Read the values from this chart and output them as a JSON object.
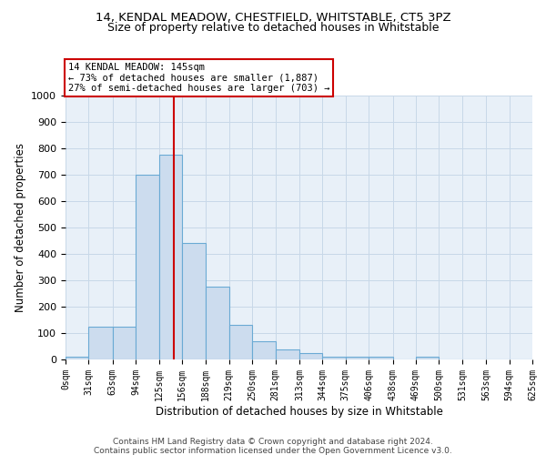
{
  "title1": "14, KENDAL MEADOW, CHESTFIELD, WHITSTABLE, CT5 3PZ",
  "title2": "Size of property relative to detached houses in Whitstable",
  "xlabel": "Distribution of detached houses by size in Whitstable",
  "ylabel": "Number of detached properties",
  "bin_edges": [
    0,
    31,
    63,
    94,
    125,
    156,
    188,
    219,
    250,
    281,
    313,
    344,
    375,
    406,
    438,
    469,
    500,
    531,
    563,
    594,
    625
  ],
  "bar_heights": [
    10,
    125,
    125,
    700,
    775,
    440,
    275,
    130,
    70,
    38,
    25,
    12,
    12,
    10,
    0,
    10,
    0,
    0,
    0,
    0
  ],
  "bar_facecolor": "#ccdcee",
  "bar_edgecolor": "#6aaad4",
  "bar_linewidth": 0.8,
  "vline_x": 145,
  "vline_color": "#cc0000",
  "vline_linewidth": 1.5,
  "annotation_lines": [
    "14 KENDAL MEADOW: 145sqm",
    "← 73% of detached houses are smaller (1,887)",
    "27% of semi-detached houses are larger (703) →"
  ],
  "annotation_box_color": "#cc0000",
  "annotation_text_color": "#000000",
  "annotation_bg": "#ffffff",
  "grid_color": "#c8d8e8",
  "background_color": "#e8f0f8",
  "ylim": [
    0,
    1000
  ],
  "yticks": [
    0,
    100,
    200,
    300,
    400,
    500,
    600,
    700,
    800,
    900,
    1000
  ],
  "tick_labels": [
    "0sqm",
    "31sqm",
    "63sqm",
    "94sqm",
    "125sqm",
    "156sqm",
    "188sqm",
    "219sqm",
    "250sqm",
    "281sqm",
    "313sqm",
    "344sqm",
    "375sqm",
    "406sqm",
    "438sqm",
    "469sqm",
    "500sqm",
    "531sqm",
    "563sqm",
    "594sqm",
    "625sqm"
  ],
  "footer_line1": "Contains HM Land Registry data © Crown copyright and database right 2024.",
  "footer_line2": "Contains public sector information licensed under the Open Government Licence v3.0."
}
